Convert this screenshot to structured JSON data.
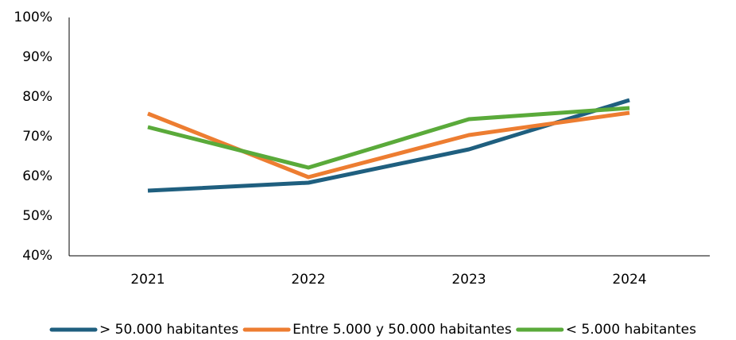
{
  "chart_data": {
    "type": "line",
    "categories": [
      "2021",
      "2022",
      "2023",
      "2024"
    ],
    "series": [
      {
        "name": "> 50.000 habitantes",
        "color": "#1f5f7f",
        "values": [
          56.4,
          58.4,
          66.8,
          79.2
        ]
      },
      {
        "name": "Entre 5.000 y 50.000 habitantes",
        "color": "#ed7d31",
        "values": [
          75.8,
          59.8,
          70.4,
          76.0
        ]
      },
      {
        "name": "< 5.000 habitantes",
        "color": "#5aaa3a",
        "values": [
          72.4,
          62.2,
          74.4,
          77.2
        ]
      }
    ],
    "ylim": [
      40,
      100
    ],
    "yticks": [
      {
        "value": 40,
        "label": "40%"
      },
      {
        "value": 50,
        "label": "50%"
      },
      {
        "value": 60,
        "label": "60%"
      },
      {
        "value": 70,
        "label": "70%"
      },
      {
        "value": 80,
        "label": "80%"
      },
      {
        "value": 90,
        "label": "90%"
      },
      {
        "value": 100,
        "label": "100%"
      }
    ],
    "grid": false,
    "legend": "bottom"
  }
}
